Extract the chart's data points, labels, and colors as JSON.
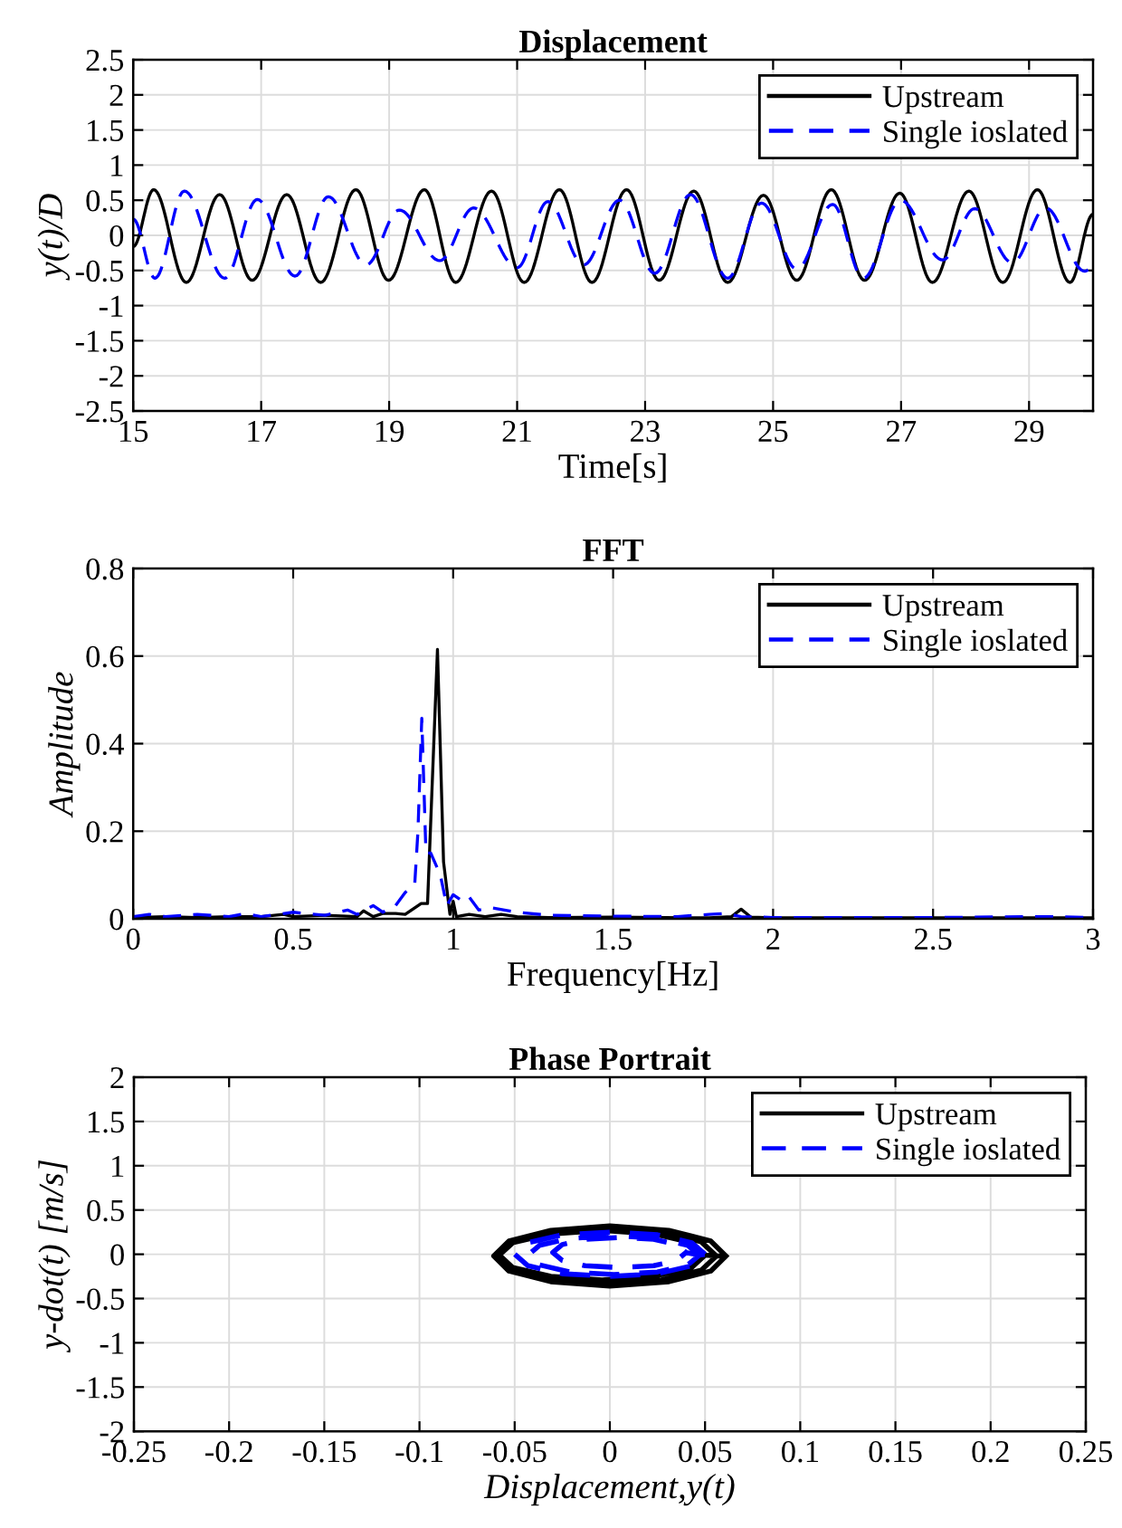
{
  "chart_data": [
    {
      "type": "line",
      "title": "Displacement",
      "xlabel": "Time[s]",
      "ylabel": "y(t)/D",
      "xlim": [
        15,
        30
      ],
      "ylim": [
        -2.5,
        2.5
      ],
      "xticks": [
        15,
        17,
        19,
        21,
        23,
        25,
        27,
        29
      ],
      "yticks": [
        -2.5,
        -2,
        -1.5,
        -1,
        -0.5,
        0,
        0.5,
        1,
        1.5,
        2,
        2.5
      ],
      "grid": true,
      "legend": "top right",
      "series": [
        {
          "name": "Upstream",
          "color": "#000000",
          "line_style": "solid",
          "x": [
            15,
            15.32,
            15.83,
            16.35,
            16.86,
            17.4,
            17.93,
            18.48,
            18.99,
            19.55,
            20.04,
            20.6,
            21.11,
            21.66,
            22.17,
            22.71,
            23.22,
            23.76,
            24.29,
            24.85,
            25.37,
            25.91,
            26.43,
            26.98,
            27.49,
            28.06,
            28.59,
            29.13,
            29.64,
            30
          ],
          "values": [
            -0.16,
            0.65,
            -0.67,
            0.58,
            -0.64,
            0.58,
            -0.67,
            0.65,
            -0.64,
            0.65,
            -0.67,
            0.63,
            -0.67,
            0.65,
            -0.67,
            0.65,
            -0.64,
            0.63,
            -0.67,
            0.57,
            -0.64,
            0.65,
            -0.64,
            0.6,
            -0.67,
            0.63,
            -0.67,
            0.65,
            -0.67,
            0.3
          ]
        },
        {
          "name": "Single ioslated",
          "color": "#0000ff",
          "line_style": "dashed",
          "x": [
            15,
            15.34,
            15.8,
            16.43,
            16.94,
            17.53,
            18.05,
            18.64,
            19.16,
            19.79,
            20.32,
            21.0,
            21.48,
            22.04,
            22.6,
            23.15,
            23.71,
            24.29,
            24.82,
            25.37,
            25.93,
            26.41,
            26.99,
            27.65,
            28.15,
            28.74,
            29.26,
            29.87,
            30
          ],
          "values": [
            0.23,
            -0.61,
            0.63,
            -0.61,
            0.51,
            -0.58,
            0.55,
            -0.42,
            0.36,
            -0.36,
            0.39,
            -0.46,
            0.48,
            -0.42,
            0.5,
            -0.54,
            0.58,
            -0.61,
            0.46,
            -0.48,
            0.44,
            -0.61,
            0.5,
            -0.35,
            0.38,
            -0.39,
            0.39,
            -0.51,
            -0.45
          ]
        }
      ]
    },
    {
      "type": "line",
      "title": "FFT",
      "xlabel": "Frequency[Hz]",
      "ylabel": "Amplitude",
      "xlim": [
        0,
        3
      ],
      "ylim": [
        0,
        0.8
      ],
      "xticks": [
        0,
        0.5,
        1,
        1.5,
        2,
        2.5,
        3
      ],
      "yticks": [
        0,
        0.2,
        0.4,
        0.6,
        0.8
      ],
      "grid": true,
      "legend": "top right",
      "series": [
        {
          "name": "Upstream",
          "color": "#000000",
          "line_style": "solid",
          "x": [
            0,
            0.1,
            0.2,
            0.3,
            0.4,
            0.47,
            0.5,
            0.6,
            0.7,
            0.72,
            0.75,
            0.78,
            0.82,
            0.85,
            0.9,
            0.92,
            0.951,
            0.97,
            0.99,
            1.0,
            1.01,
            1.05,
            1.1,
            1.15,
            1.2,
            1.3,
            1.5,
            1.8,
            1.87,
            1.9,
            1.93,
            2.0,
            2.5,
            3.0
          ],
          "values": [
            0.003,
            0.005,
            0.003,
            0.005,
            0.005,
            0.01,
            0.005,
            0.008,
            0.005,
            0.018,
            0.005,
            0.012,
            0.012,
            0.01,
            0.035,
            0.035,
            0.615,
            0.13,
            0.01,
            0.04,
            0.005,
            0.01,
            0.005,
            0.01,
            0.005,
            0.003,
            0.004,
            0.002,
            0.005,
            0.022,
            0.004,
            0.002,
            0.002,
            0.002
          ]
        },
        {
          "name": "Single ioslated",
          "color": "#0000ff",
          "line_style": "dashed",
          "x": [
            0,
            0.05,
            0.1,
            0.2,
            0.3,
            0.35,
            0.4,
            0.5,
            0.6,
            0.67,
            0.7,
            0.75,
            0.78,
            0.82,
            0.85,
            0.88,
            0.89,
            0.902,
            0.915,
            0.93,
            0.96,
            0.98,
            1.0,
            1.03,
            1.05,
            1.08,
            1.12,
            1.2,
            1.3,
            1.5,
            1.7,
            1.8,
            1.85,
            1.9,
            2.0,
            2.5,
            2.85,
            3.0
          ],
          "values": [
            0.005,
            0.01,
            0.005,
            0.01,
            0.005,
            0.012,
            0.005,
            0.015,
            0.008,
            0.02,
            0.01,
            0.03,
            0.015,
            0.03,
            0.06,
            0.08,
            0.2,
            0.458,
            0.15,
            0.15,
            0.1,
            0.03,
            0.055,
            0.04,
            0.05,
            0.02,
            0.025,
            0.015,
            0.008,
            0.006,
            0.005,
            0.01,
            0.012,
            0.005,
            0.003,
            0.003,
            0.005,
            0.003
          ]
        }
      ]
    },
    {
      "type": "line",
      "title": "Phase Portrait",
      "xlabel": "Displacement,y(t)",
      "ylabel": "y-dot(t) [m/s]",
      "xlim": [
        -0.25,
        0.25
      ],
      "ylim": [
        -2,
        2
      ],
      "xticks": [
        -0.25,
        -0.2,
        -0.15,
        -0.1,
        -0.05,
        0,
        0.05,
        0.1,
        0.15,
        0.2,
        0.25
      ],
      "yticks": [
        -2,
        -1.5,
        -1,
        -0.5,
        0,
        0.5,
        1,
        1.5,
        2
      ],
      "grid": true,
      "legend": "top right",
      "series": [
        {
          "name": "Upstream",
          "color": "#000000",
          "line_style": "solid",
          "x": [
            0.061,
            0.053,
            0.031,
            0,
            -0.031,
            -0.053,
            -0.061,
            -0.053,
            -0.031,
            0,
            0.031,
            0.053,
            0.061,
            0.056,
            0.048,
            0.027,
            -0.002,
            -0.031,
            -0.052,
            -0.06,
            -0.052,
            -0.031,
            -0.002,
            0.027,
            0.048,
            0.056,
            0.05,
            0.043,
            0.023,
            -0.004,
            -0.031,
            -0.051,
            -0.058,
            -0.051,
            -0.031,
            -0.004,
            0.023,
            0.043,
            0.05
          ],
          "values": [
            -0.02,
            0.15,
            0.27,
            0.32,
            0.27,
            0.15,
            -0.02,
            -0.19,
            -0.31,
            -0.36,
            -0.31,
            -0.19,
            -0.02,
            -0.02,
            0.14,
            0.25,
            0.29,
            0.25,
            0.14,
            -0.02,
            -0.18,
            -0.29,
            -0.33,
            -0.29,
            -0.18,
            -0.02,
            -0.01,
            0.13,
            0.23,
            0.27,
            0.23,
            0.13,
            -0.01,
            -0.15,
            -0.25,
            -0.29,
            -0.25,
            -0.15,
            -0.01
          ]
        },
        {
          "name": "Single ioslated",
          "color": "#0000ff",
          "line_style": "dashed",
          "x": [
            0.05,
            0.043,
            0.025,
            0,
            -0.025,
            -0.043,
            -0.05,
            -0.043,
            -0.025,
            0,
            0.025,
            0.043,
            0.05,
            0.047,
            0.041,
            0.025,
            0.002,
            -0.021,
            -0.037,
            -0.043,
            -0.037,
            -0.021,
            0.002,
            0.025,
            0.041,
            0.047,
            0.04,
            0.035,
            0.023,
            0.005,
            -0.013,
            -0.025,
            -0.03,
            -0.025,
            -0.013,
            0.005,
            0.023,
            0.035,
            0.04
          ],
          "values": [
            0,
            0.13,
            0.22,
            0.25,
            0.22,
            0.13,
            0,
            -0.13,
            -0.22,
            -0.25,
            -0.22,
            -0.13,
            0,
            -0.01,
            0.1,
            0.18,
            0.21,
            0.18,
            0.1,
            -0.01,
            -0.12,
            -0.2,
            -0.23,
            -0.2,
            -0.12,
            -0.01,
            0.02,
            0.11,
            0.17,
            0.19,
            0.17,
            0.11,
            0.02,
            -0.07,
            -0.13,
            -0.15,
            -0.13,
            -0.07,
            0.02
          ]
        }
      ]
    }
  ]
}
